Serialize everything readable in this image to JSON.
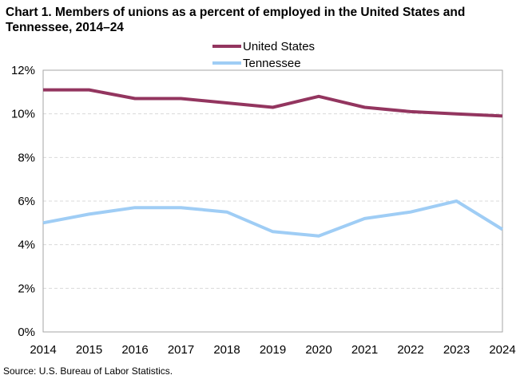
{
  "chart_data": {
    "type": "line",
    "title": "Chart 1. Members of unions as a percent of employed  in the United States and Tennessee, 2014–24",
    "xlabel": "",
    "ylabel": "",
    "x": [
      "2014",
      "2015",
      "2016",
      "2017",
      "2018",
      "2019",
      "2020",
      "2021",
      "2022",
      "2023",
      "2024"
    ],
    "ylim": [
      0,
      12
    ],
    "yticks": [
      0,
      2,
      4,
      6,
      8,
      10,
      12
    ],
    "ytick_labels": [
      "0%",
      "2%",
      "4%",
      "6%",
      "8%",
      "10%",
      "12%"
    ],
    "grid": "horizontal dashed",
    "legend_placement": "top-center",
    "series": [
      {
        "name": "United States",
        "color": "#93355f",
        "values": [
          11.1,
          11.1,
          10.7,
          10.7,
          10.5,
          10.3,
          10.8,
          10.3,
          10.1,
          10.0,
          9.9
        ]
      },
      {
        "name": "Tennessee",
        "color": "#9fcdf5",
        "values": [
          5.0,
          5.4,
          5.7,
          5.7,
          5.5,
          4.6,
          4.4,
          5.2,
          5.5,
          6.0,
          4.7
        ]
      }
    ],
    "source": "Source:  U.S. Bureau  of Labor Statistics."
  }
}
